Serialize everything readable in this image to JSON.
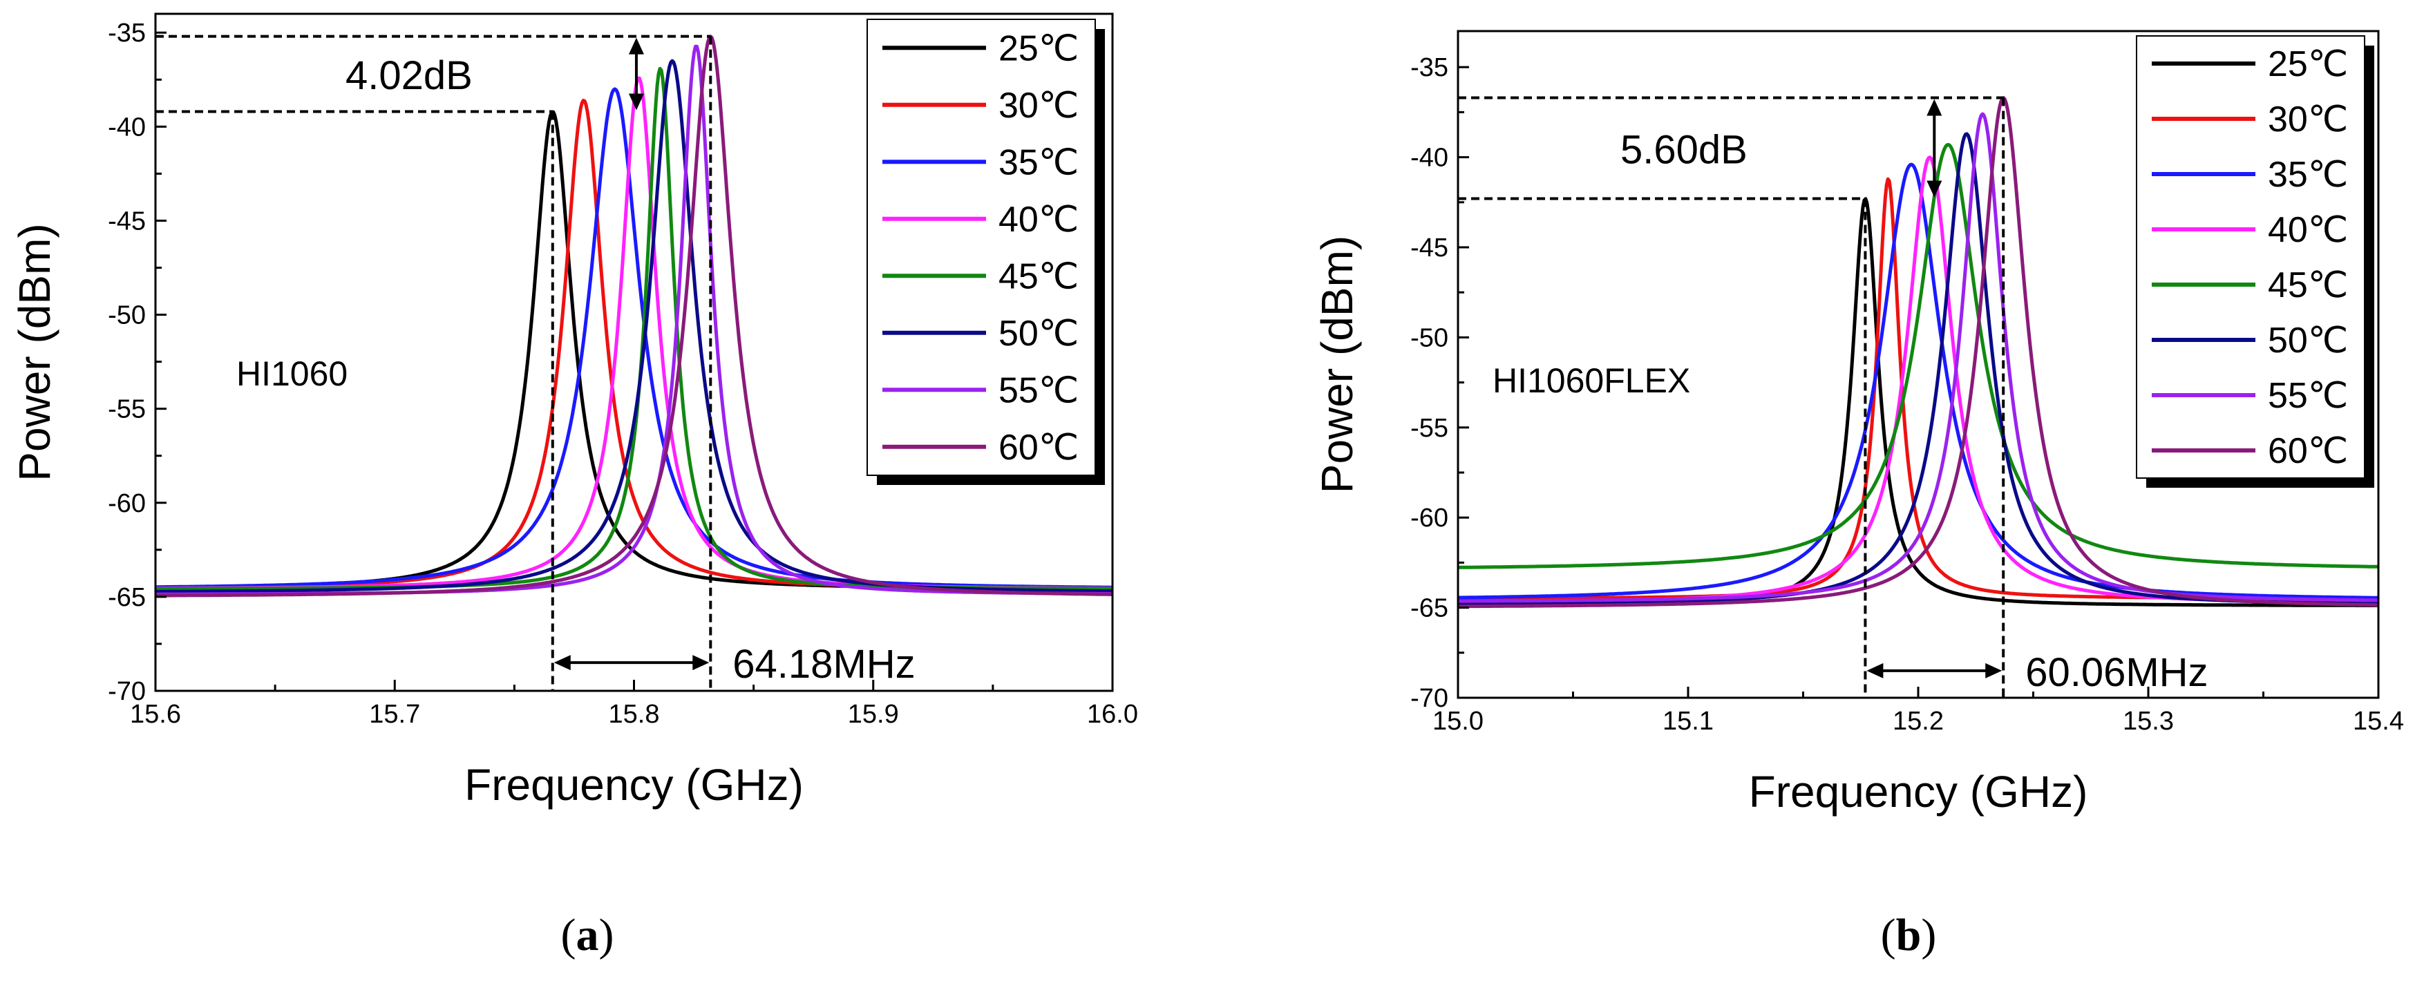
{
  "series_colors": {
    "25": "#000000",
    "30": "#ee1111",
    "35": "#1a1aff",
    "40": "#ff22ff",
    "45": "#118811",
    "50": "#0a0a88",
    "55": "#9a22ee",
    "60": "#8a1a7a"
  },
  "chart_data": [
    {
      "type": "line",
      "panel_caption": "a",
      "label": "HI1060",
      "xlabel": "Frequency (GHz)",
      "ylabel": "Power (dBm)",
      "xlim": [
        15.6,
        16.0
      ],
      "ylim": [
        -70,
        -34
      ],
      "xticks": [
        15.6,
        15.7,
        15.8,
        15.9,
        16.0
      ],
      "xtick_labels": [
        "15.6",
        "15.7",
        "15.8",
        "15.9",
        "16.0"
      ],
      "yticks": [
        -70,
        -65,
        -60,
        -55,
        -50,
        -45,
        -40,
        -35
      ],
      "ytick_labels": [
        "-70",
        "-65",
        "-60",
        "-55",
        "-50",
        "-45",
        "-40",
        "-35"
      ],
      "legend_position": "top-right",
      "series": [
        {
          "name": "25℃",
          "key": "25",
          "center": 15.766,
          "peak": -39.2,
          "base": -64.6,
          "width": 0.01
        },
        {
          "name": "30℃",
          "key": "30",
          "center": 15.779,
          "peak": -38.6,
          "base": -64.6,
          "width": 0.01
        },
        {
          "name": "35℃",
          "key": "35",
          "center": 15.792,
          "peak": -38.0,
          "base": -64.6,
          "width": 0.013
        },
        {
          "name": "40℃",
          "key": "40",
          "center": 15.802,
          "peak": -37.4,
          "base": -64.6,
          "width": 0.009
        },
        {
          "name": "45℃",
          "key": "45",
          "center": 15.811,
          "peak": -36.9,
          "base": -64.6,
          "width": 0.007
        },
        {
          "name": "50℃",
          "key": "50",
          "center": 15.816,
          "peak": -36.5,
          "base": -64.8,
          "width": 0.011
        },
        {
          "name": "55℃",
          "key": "55",
          "center": 15.826,
          "peak": -35.7,
          "base": -64.9,
          "width": 0.008
        },
        {
          "name": "60℃",
          "key": "60",
          "center": 15.832,
          "peak": -35.2,
          "base": -65.0,
          "width": 0.011
        }
      ],
      "annotations": {
        "power_diff": "4.02dB",
        "freq_shift": "64.18MHz",
        "low_x": 15.766,
        "low_y": -39.2,
        "high_x": 15.832,
        "high_y": -35.2,
        "arrow_x": 15.801,
        "shift_arrow_y": -68.5
      }
    },
    {
      "type": "line",
      "panel_caption": "b",
      "label": "HI1060FLEX",
      "xlabel": "Frequency (GHz)",
      "ylabel": "Power (dBm)",
      "xlim": [
        15.0,
        15.4
      ],
      "ylim": [
        -70,
        -33
      ],
      "xticks": [
        15.0,
        15.1,
        15.2,
        15.3,
        15.4
      ],
      "xtick_labels": [
        "15.0",
        "15.1",
        "15.2",
        "15.3",
        "15.4"
      ],
      "yticks": [
        -70,
        -65,
        -60,
        -55,
        -50,
        -45,
        -40,
        -35
      ],
      "ytick_labels": [
        "-70",
        "-65",
        "-60",
        "-55",
        "-50",
        "-45",
        "-40",
        "-35"
      ],
      "legend_position": "top-right",
      "series": [
        {
          "name": "25℃",
          "key": "25",
          "center": 15.177,
          "peak": -42.3,
          "base": -64.9,
          "width": 0.007
        },
        {
          "name": "30℃",
          "key": "30",
          "center": 15.187,
          "peak": -41.2,
          "base": -64.5,
          "width": 0.006
        },
        {
          "name": "35℃",
          "key": "35",
          "center": 15.197,
          "peak": -40.4,
          "base": -64.6,
          "width": 0.016
        },
        {
          "name": "40℃",
          "key": "40",
          "center": 15.205,
          "peak": -40.0,
          "base": -64.8,
          "width": 0.012
        },
        {
          "name": "45℃",
          "key": "45",
          "center": 15.213,
          "peak": -39.3,
          "base": -62.9,
          "width": 0.016
        },
        {
          "name": "50℃",
          "key": "50",
          "center": 15.221,
          "peak": -38.7,
          "base": -64.9,
          "width": 0.012
        },
        {
          "name": "55℃",
          "key": "55",
          "center": 15.228,
          "peak": -37.6,
          "base": -64.7,
          "width": 0.011
        },
        {
          "name": "60℃",
          "key": "60",
          "center": 15.237,
          "peak": -36.7,
          "base": -65.0,
          "width": 0.012
        }
      ],
      "annotations": {
        "power_diff": "5.60dB",
        "freq_shift": "60.06MHz",
        "low_x": 15.177,
        "low_y": -42.3,
        "high_x": 15.237,
        "high_y": -36.7,
        "arrow_x": 15.207,
        "shift_arrow_y": -68.5
      }
    }
  ]
}
